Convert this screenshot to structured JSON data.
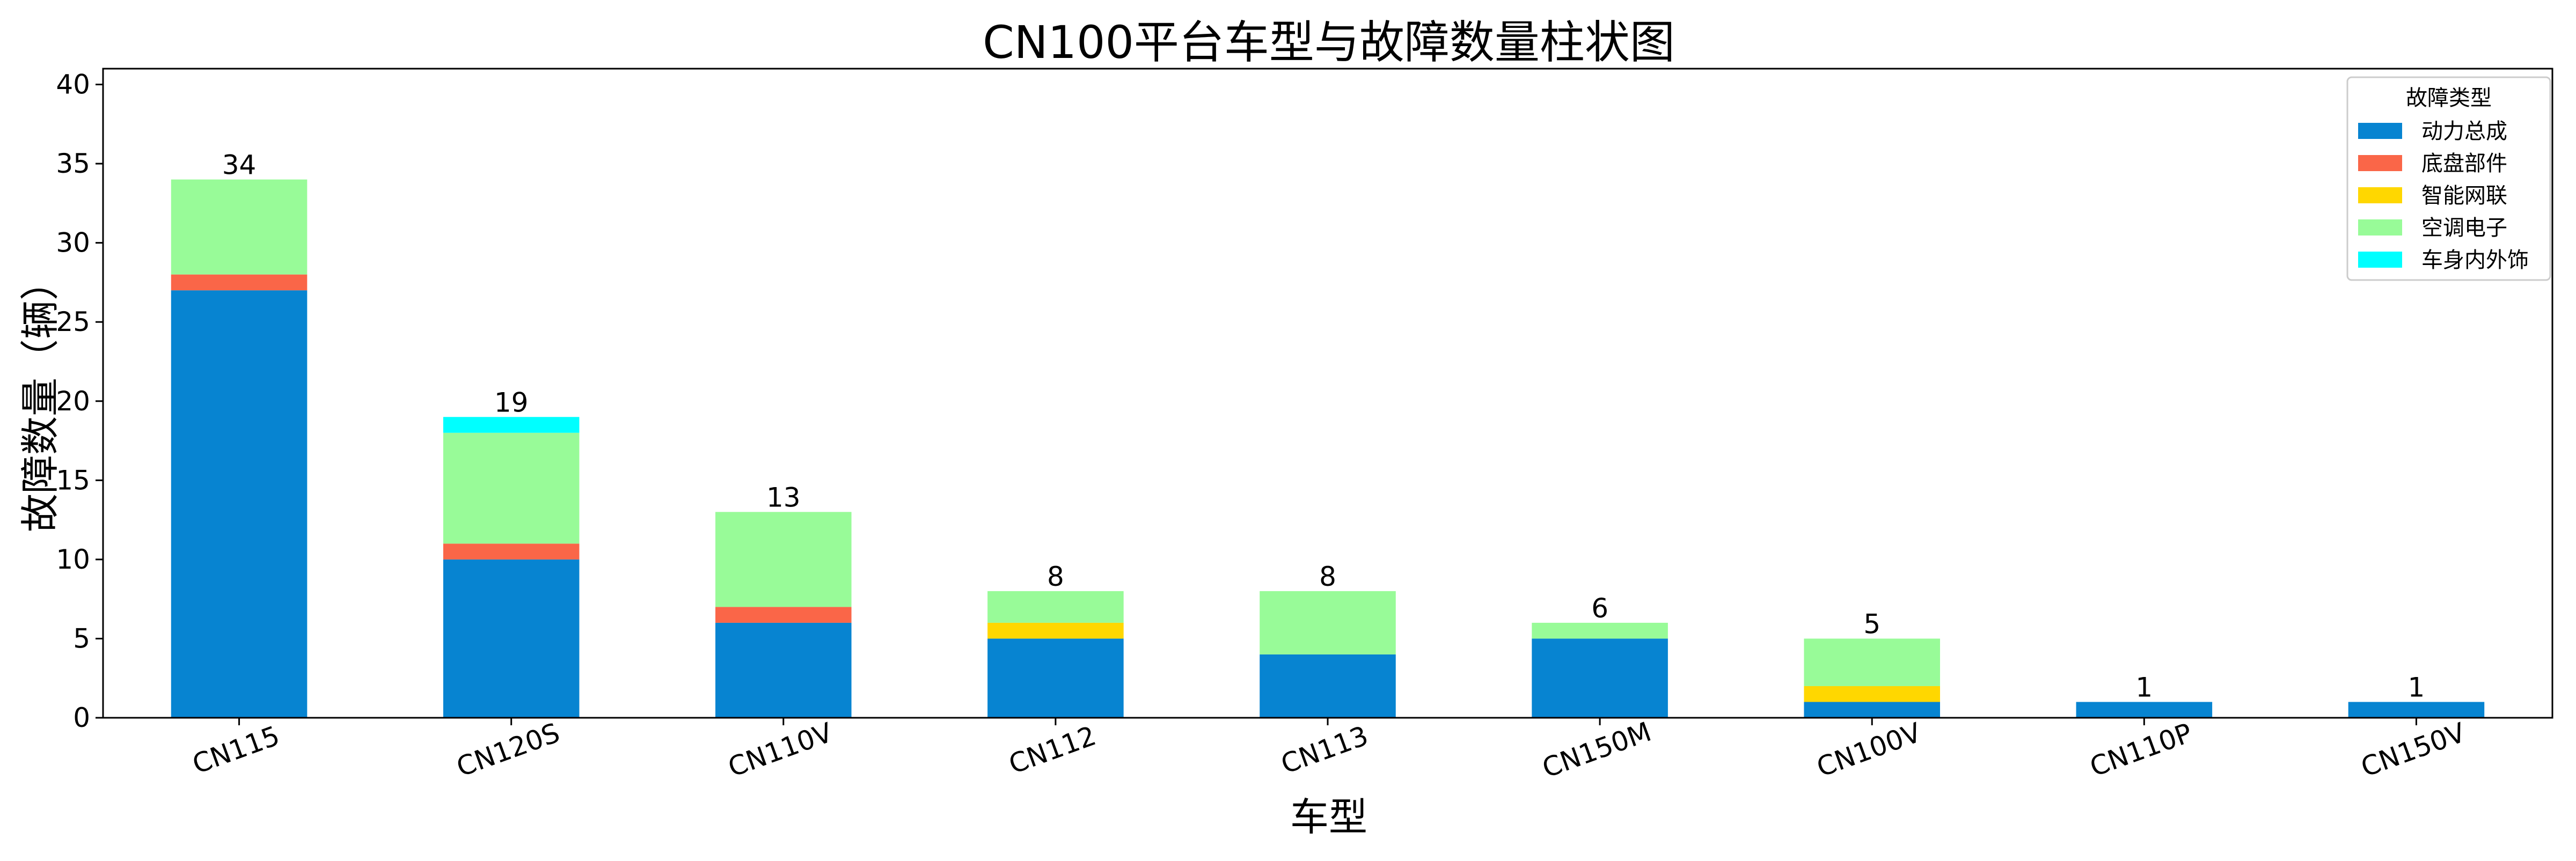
{
  "chart_data": {
    "type": "bar",
    "stacked": true,
    "title": "CN100平台车型与故障数量柱状图",
    "xlabel": "车型",
    "ylabel": "故障数量（辆）",
    "ylim": [
      0,
      41
    ],
    "yticks": [
      0,
      5,
      10,
      15,
      20,
      25,
      30,
      35,
      40
    ],
    "grid": false,
    "legend_title": "故障类型",
    "legend_position": "top-right",
    "categories": [
      "CN115",
      "CN120S",
      "CN110V",
      "CN112",
      "CN113",
      "CN150M",
      "CN100V",
      "CN110P",
      "CN150V"
    ],
    "series": [
      {
        "name": "动力总成",
        "color": "#0784d1",
        "values": [
          27,
          10,
          6,
          5,
          4,
          5,
          1,
          1,
          1
        ]
      },
      {
        "name": "底盘部件",
        "color": "#fa6648",
        "values": [
          1,
          1,
          1,
          0,
          0,
          0,
          0,
          0,
          0
        ]
      },
      {
        "name": "智能网联",
        "color": "#ffd700",
        "values": [
          0,
          0,
          0,
          1,
          0,
          0,
          1,
          0,
          0
        ]
      },
      {
        "name": "空调电子",
        "color": "#98fb98",
        "values": [
          6,
          7,
          6,
          2,
          4,
          1,
          3,
          0,
          0
        ]
      },
      {
        "name": "车身内外饰",
        "color": "#00ffff",
        "values": [
          0,
          1,
          0,
          0,
          0,
          0,
          0,
          0,
          0
        ]
      }
    ],
    "totals": [
      34,
      19,
      13,
      8,
      8,
      6,
      5,
      1,
      1
    ]
  }
}
